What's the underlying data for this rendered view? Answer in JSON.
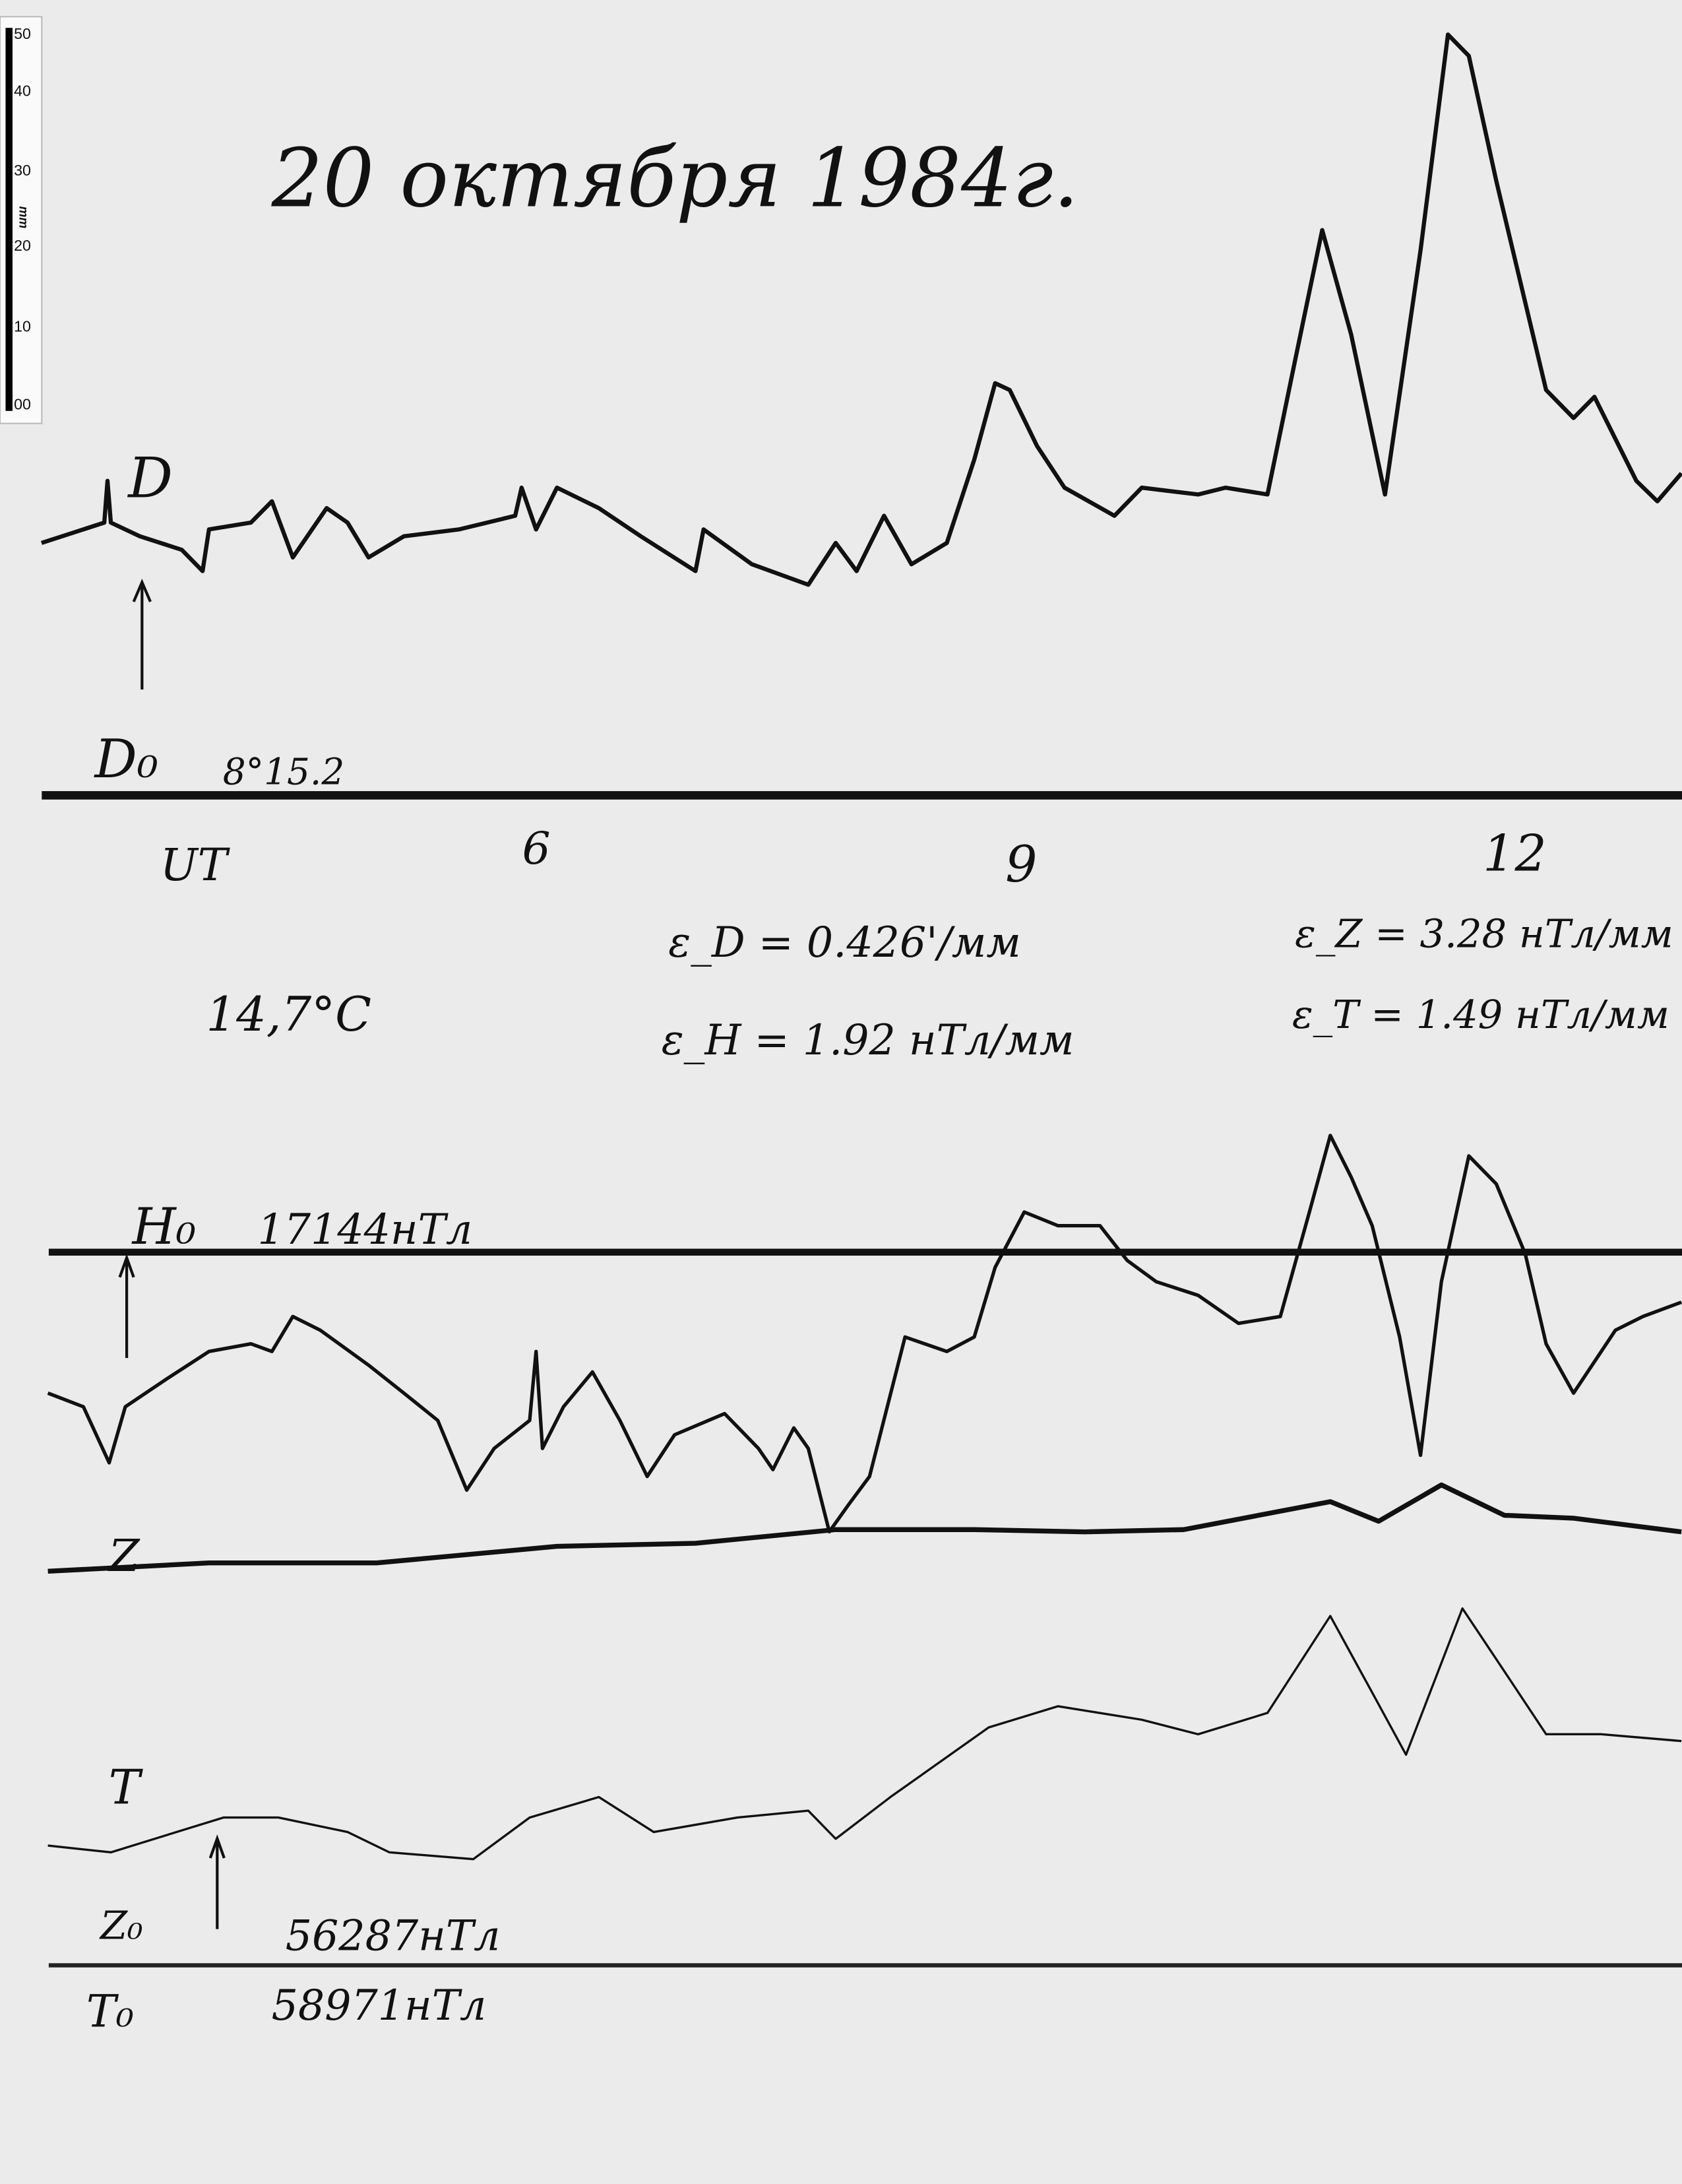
{
  "title": "20 октября 1984г.",
  "scale_bar": {
    "unit": "mm",
    "ticks": [
      "50",
      "40",
      "30",
      "20",
      "10",
      "00"
    ]
  },
  "labels": {
    "D": "D",
    "D0_label": "D₀",
    "D0_value": "8°15.2",
    "UT": "UT",
    "hour_6": "6",
    "hour_9": "9",
    "hour_12": "12",
    "temperature": "14,7°C",
    "eps_D": "ε_D = 0.426'/мм",
    "eps_H": "ε_H = 1.92 нТл/мм",
    "eps_Z": "ε_Z = 3.28 нТл/мм",
    "eps_T": "ε_T = 1.49 нТл/мм",
    "H0_label": "H₀",
    "H0_value": "17144нТл",
    "Z": "Z",
    "T": "T",
    "Z0_label": "Z₀",
    "Z0_value": "56287нТл",
    "T0_label": "T₀",
    "T0_value": "58971нТл"
  },
  "chart_data": {
    "type": "line",
    "title": "20 октября 1984г.",
    "xlabel": "UT",
    "x_ticks": [
      6,
      9,
      12
    ],
    "xlim": [
      2.9,
      13.2
    ],
    "ylabel": "mm",
    "grid": false,
    "series": [
      {
        "name": "D",
        "baseline": "D₀ 8°15.2",
        "points": [
          [
            2.93,
            33.3
          ],
          [
            3.32,
            36.0
          ],
          [
            3.34,
            41.5
          ],
          [
            3.36,
            36.0
          ],
          [
            3.54,
            34.2
          ],
          [
            3.8,
            32.4
          ],
          [
            3.93,
            29.6
          ],
          [
            3.97,
            35.1
          ],
          [
            4.23,
            36.0
          ],
          [
            4.36,
            38.8
          ],
          [
            4.49,
            31.4
          ],
          [
            4.7,
            37.9
          ],
          [
            4.83,
            36.0
          ],
          [
            4.96,
            31.4
          ],
          [
            5.18,
            34.2
          ],
          [
            5.52,
            35.1
          ],
          [
            5.87,
            36.9
          ],
          [
            5.91,
            40.6
          ],
          [
            6.0,
            35.1
          ],
          [
            6.13,
            40.6
          ],
          [
            6.39,
            37.9
          ],
          [
            6.65,
            34.2
          ],
          [
            6.99,
            29.6
          ],
          [
            7.04,
            35.1
          ],
          [
            7.34,
            30.5
          ],
          [
            7.69,
            27.8
          ],
          [
            7.86,
            33.3
          ],
          [
            7.99,
            29.6
          ],
          [
            8.16,
            36.9
          ],
          [
            8.33,
            30.5
          ],
          [
            8.55,
            33.3
          ],
          [
            8.72,
            44.3
          ],
          [
            8.85,
            54.4
          ],
          [
            8.94,
            53.5
          ],
          [
            9.11,
            46.1
          ],
          [
            9.28,
            40.6
          ],
          [
            9.59,
            36.9
          ],
          [
            9.76,
            40.6
          ],
          [
            10.11,
            39.7
          ],
          [
            10.28,
            40.6
          ],
          [
            10.54,
            39.7
          ],
          [
            10.71,
            57.2
          ],
          [
            10.88,
            74.6
          ],
          [
            11.06,
            60.8
          ],
          [
            11.27,
            39.7
          ],
          [
            11.49,
            71.9
          ],
          [
            11.66,
            100.4
          ],
          [
            11.79,
            97.6
          ],
          [
            11.96,
            81.1
          ],
          [
            12.27,
            53.5
          ],
          [
            12.44,
            49.8
          ],
          [
            12.57,
            52.6
          ],
          [
            12.83,
            41.5
          ],
          [
            12.96,
            38.8
          ],
          [
            13.11,
            42.5
          ]
        ]
      },
      {
        "name": "H",
        "baseline": "H₀ 17144нТл",
        "points": [
          [
            2.97,
            -18.6
          ],
          [
            3.19,
            -20.4
          ],
          [
            3.35,
            -27.8
          ],
          [
            3.45,
            -20.4
          ],
          [
            3.71,
            -16.7
          ],
          [
            3.97,
            -13.1
          ],
          [
            4.23,
            -12.1
          ],
          [
            4.36,
            -13.1
          ],
          [
            4.49,
            -8.5
          ],
          [
            4.66,
            -10.3
          ],
          [
            4.96,
            -14.9
          ],
          [
            5.18,
            -18.6
          ],
          [
            5.39,
            -22.2
          ],
          [
            5.57,
            -31.4
          ],
          [
            5.74,
            -25.9
          ],
          [
            5.96,
            -22.2
          ],
          [
            6.0,
            -13.1
          ],
          [
            6.04,
            -25.9
          ],
          [
            6.17,
            -20.4
          ],
          [
            6.35,
            -15.8
          ],
          [
            6.52,
            -22.2
          ],
          [
            6.69,
            -29.6
          ],
          [
            6.86,
            -24.1
          ],
          [
            7.17,
            -21.3
          ],
          [
            7.38,
            -25.9
          ],
          [
            7.47,
            -28.7
          ],
          [
            7.6,
            -23.2
          ],
          [
            7.69,
            -25.9
          ],
          [
            7.82,
            -36.9
          ],
          [
            7.94,
            -33.3
          ],
          [
            8.07,
            -29.6
          ],
          [
            8.29,
            -11.2
          ],
          [
            8.55,
            -13.1
          ],
          [
            8.72,
            -11.2
          ],
          [
            8.85,
            -2.0
          ],
          [
            9.03,
            5.3
          ],
          [
            9.24,
            3.5
          ],
          [
            9.5,
            3.5
          ],
          [
            9.67,
            -1.1
          ],
          [
            9.85,
            -3.9
          ],
          [
            10.11,
            -5.7
          ],
          [
            10.36,
            -9.4
          ],
          [
            10.62,
            -8.5
          ],
          [
            10.8,
            5.3
          ],
          [
            10.93,
            15.4
          ],
          [
            11.06,
            9.9
          ],
          [
            11.19,
            3.5
          ],
          [
            11.36,
            -11.2
          ],
          [
            11.49,
            -26.8
          ],
          [
            11.62,
            -3.9
          ],
          [
            11.79,
            12.7
          ],
          [
            11.96,
            9.0
          ],
          [
            12.14,
            -0.2
          ],
          [
            12.27,
            -12.1
          ],
          [
            12.44,
            -18.6
          ],
          [
            12.7,
            -10.3
          ],
          [
            12.87,
            -8.5
          ],
          [
            13.11,
            -6.6
          ]
        ]
      },
      {
        "name": "Z",
        "baseline": "Z₀ 56287нТл",
        "points": [
          [
            2.97,
            52.0
          ],
          [
            3.97,
            53.1
          ],
          [
            5.01,
            53.1
          ],
          [
            6.13,
            55.3
          ],
          [
            6.99,
            55.7
          ],
          [
            7.86,
            57.5
          ],
          [
            8.72,
            57.5
          ],
          [
            9.41,
            57.2
          ],
          [
            10.02,
            57.5
          ],
          [
            10.93,
            61.2
          ],
          [
            11.23,
            58.6
          ],
          [
            11.62,
            63.4
          ],
          [
            12.01,
            59.4
          ],
          [
            12.44,
            59.0
          ],
          [
            13.11,
            57.2
          ]
        ]
      },
      {
        "name": "T",
        "baseline": "T₀ 58971нТл",
        "points": [
          [
            2.97,
            15.8
          ],
          [
            3.36,
            14.9
          ],
          [
            4.06,
            19.5
          ],
          [
            4.4,
            19.5
          ],
          [
            4.83,
            17.6
          ],
          [
            5.09,
            14.9
          ],
          [
            5.61,
            14.0
          ],
          [
            5.96,
            19.5
          ],
          [
            6.39,
            22.2
          ],
          [
            6.73,
            17.6
          ],
          [
            7.25,
            19.5
          ],
          [
            7.69,
            20.4
          ],
          [
            7.86,
            16.7
          ],
          [
            8.2,
            22.2
          ],
          [
            8.81,
            31.4
          ],
          [
            9.24,
            34.2
          ],
          [
            9.76,
            32.4
          ],
          [
            10.11,
            30.5
          ],
          [
            10.54,
            33.3
          ],
          [
            10.93,
            46.1
          ],
          [
            11.19,
            36.0
          ],
          [
            11.4,
            27.8
          ],
          [
            11.75,
            47.1
          ],
          [
            12.01,
            38.8
          ],
          [
            12.27,
            30.5
          ],
          [
            12.61,
            30.5
          ],
          [
            13.11,
            29.6
          ]
        ]
      }
    ]
  }
}
